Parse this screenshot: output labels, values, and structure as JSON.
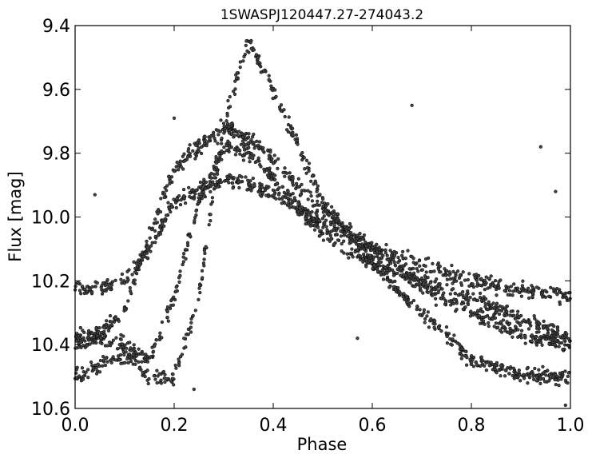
{
  "chart_data": {
    "type": "scatter",
    "title": "1SWASPJ120447.27-274043.2",
    "xlabel": "Phase",
    "ylabel": "Flux [mag]",
    "xlim": [
      0.0,
      1.0
    ],
    "ylim": [
      9.4,
      10.6
    ],
    "y_inverted": true,
    "grid": false,
    "xticks": [
      "0.0",
      "0.2",
      "0.4",
      "0.6",
      "0.8",
      "1.0"
    ],
    "yticks": [
      "9.4",
      "9.6",
      "9.8",
      "10.0",
      "10.2",
      "10.4",
      "10.6"
    ],
    "marker_color": "#444444",
    "marker_edge": "#000000",
    "series": [
      {
        "x": [
          0.0,
          0.05,
          0.1,
          0.15,
          0.2,
          0.25,
          0.3,
          0.35,
          0.4,
          0.5,
          0.6,
          0.7,
          0.8,
          0.9,
          1.0
        ],
        "y": [
          10.5,
          10.47,
          10.43,
          10.5,
          10.5,
          10.25,
          9.7,
          9.45,
          9.6,
          9.95,
          10.15,
          10.3,
          10.45,
          10.5,
          10.5
        ]
      },
      {
        "x": [
          0.0,
          0.05,
          0.1,
          0.15,
          0.2,
          0.25,
          0.3,
          0.35,
          0.4,
          0.5,
          0.6,
          0.7,
          0.8,
          0.9,
          1.0
        ],
        "y": [
          10.38,
          10.36,
          10.3,
          10.05,
          9.85,
          9.78,
          9.72,
          9.75,
          9.82,
          9.98,
          10.1,
          10.22,
          10.3,
          10.37,
          10.4
        ]
      },
      {
        "x": [
          0.0,
          0.05,
          0.1,
          0.15,
          0.2,
          0.25,
          0.3,
          0.35,
          0.4,
          0.5,
          0.6,
          0.7,
          0.8,
          0.9,
          1.0
        ],
        "y": [
          10.23,
          10.22,
          10.2,
          10.1,
          9.95,
          9.92,
          9.88,
          9.9,
          9.93,
          10.02,
          10.1,
          10.15,
          10.2,
          10.23,
          10.25
        ]
      },
      {
        "x": [
          0.0,
          0.05,
          0.1,
          0.15,
          0.2,
          0.25,
          0.3,
          0.35,
          0.4,
          0.5,
          0.6,
          0.7,
          0.8,
          0.9,
          1.0
        ],
        "y": [
          10.4,
          10.38,
          10.4,
          10.45,
          10.25,
          9.95,
          9.78,
          9.8,
          9.88,
          10.05,
          10.15,
          10.2,
          10.25,
          10.32,
          10.38
        ]
      }
    ],
    "outliers": {
      "x": [
        0.04,
        0.2,
        0.24,
        0.57,
        0.68,
        0.94,
        0.97,
        0.99
      ],
      "y": [
        9.93,
        9.69,
        10.54,
        10.38,
        9.65,
        9.78,
        9.92,
        10.59
      ]
    }
  }
}
